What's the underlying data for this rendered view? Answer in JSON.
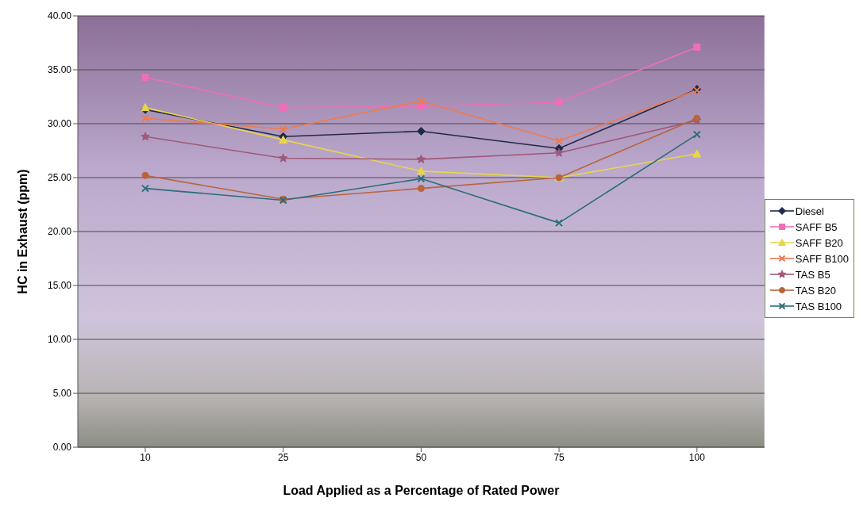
{
  "chart_data": {
    "type": "line",
    "xlabel": "Load Applied as a Percentage of Rated Power",
    "ylabel": "HC in Exhaust (ppm)",
    "categories": [
      "10",
      "25",
      "50",
      "75",
      "100"
    ],
    "ylim": [
      0,
      40
    ],
    "yticks": [
      {
        "value": 0,
        "label": "0.00"
      },
      {
        "value": 5,
        "label": "5.00"
      },
      {
        "value": 10,
        "label": "10.00"
      },
      {
        "value": 15,
        "label": "15.00"
      },
      {
        "value": 20,
        "label": "20.00"
      },
      {
        "value": 25,
        "label": "25.00"
      },
      {
        "value": 30,
        "label": "30.00"
      },
      {
        "value": 35,
        "label": "35.00"
      },
      {
        "value": 40,
        "label": "40.00"
      }
    ],
    "grid": "y",
    "legend": "right",
    "line_style": "solid",
    "series": [
      {
        "name": "Diesel",
        "color": "#1f2a4a",
        "marker": "diamond",
        "values": [
          31.3,
          28.8,
          29.3,
          27.7,
          33.2
        ]
      },
      {
        "name": "SAFF B5",
        "color": "#ee6fb8",
        "marker": "square",
        "values": [
          34.3,
          31.5,
          31.6,
          32.0,
          37.1
        ]
      },
      {
        "name": "SAFF B20",
        "color": "#e8d64a",
        "marker": "triangle",
        "values": [
          31.5,
          28.5,
          25.6,
          25.0,
          27.2
        ]
      },
      {
        "name": "SAFF B100",
        "color": "#ee7a50",
        "marker": "cross",
        "values": [
          30.5,
          29.5,
          32.1,
          28.4,
          33.1
        ]
      },
      {
        "name": "TAS B5",
        "color": "#a05878",
        "marker": "star",
        "values": [
          28.8,
          26.8,
          26.7,
          27.3,
          30.3
        ]
      },
      {
        "name": "TAS B20",
        "color": "#b8643c",
        "marker": "circle",
        "values": [
          25.2,
          23.0,
          24.0,
          25.0,
          30.5
        ]
      },
      {
        "name": "TAS B100",
        "color": "#2a6e78",
        "marker": "cross",
        "values": [
          24.0,
          22.9,
          24.9,
          20.8,
          29.0
        ]
      }
    ]
  }
}
